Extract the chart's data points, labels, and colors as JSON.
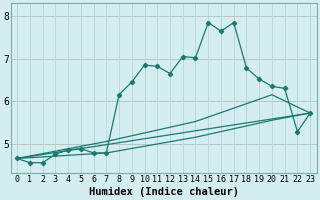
{
  "xlabel": "Humidex (Indice chaleur)",
  "bg_color": "#d4edf0",
  "grid_color": "#b8d4d8",
  "red_line_color": "#cc7777",
  "line_color": "#1a7a6e",
  "spine_color": "#7aabaa",
  "xlim": [
    -0.5,
    23.5
  ],
  "ylim": [
    4.3,
    8.3
  ],
  "yticks": [
    5,
    6,
    7,
    8
  ],
  "xticks": [
    0,
    1,
    2,
    3,
    4,
    5,
    6,
    7,
    8,
    9,
    10,
    11,
    12,
    13,
    14,
    15,
    16,
    17,
    18,
    19,
    20,
    21,
    22,
    23
  ],
  "series1_x": [
    0,
    1,
    2,
    3,
    4,
    5,
    6,
    7,
    8,
    9,
    10,
    11,
    12,
    13,
    14,
    15,
    16,
    17,
    18,
    19,
    20,
    21,
    22,
    23
  ],
  "series1_y": [
    4.65,
    4.55,
    4.55,
    4.75,
    4.85,
    4.88,
    4.78,
    4.78,
    6.15,
    6.45,
    6.85,
    6.82,
    6.65,
    7.05,
    7.02,
    7.85,
    7.65,
    7.85,
    6.78,
    6.52,
    6.35,
    6.3,
    5.28,
    5.72
  ],
  "series2_x": [
    0,
    23
  ],
  "series2_y": [
    4.65,
    5.72
  ],
  "series3_x": [
    0,
    7,
    14,
    20,
    23
  ],
  "series3_y": [
    4.65,
    4.78,
    5.15,
    5.55,
    5.72
  ],
  "series4_x": [
    0,
    7,
    14,
    20,
    23
  ],
  "series4_y": [
    4.65,
    5.05,
    5.52,
    6.15,
    5.72
  ],
  "tick_fontsize": 6,
  "label_fontsize": 7.5,
  "linewidth": 0.9,
  "markersize": 2.2
}
